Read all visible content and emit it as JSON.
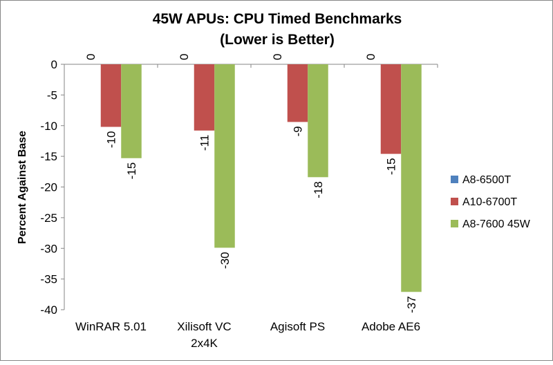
{
  "chart_data": {
    "type": "bar",
    "title": "45W APUs: CPU Timed Benchmarks",
    "subtitle": "(Lower is Better)",
    "xlabel": "",
    "ylabel": "Percent Against Base",
    "ylim": [
      -40,
      0
    ],
    "yticks": [
      "0",
      "-5",
      "-10",
      "-15",
      "-20",
      "-25",
      "-30",
      "-35",
      "-40"
    ],
    "ytick_values": [
      0,
      -5,
      -10,
      -15,
      -20,
      -25,
      -30,
      -35,
      -40
    ],
    "categories": [
      [
        "WinRAR 5.01"
      ],
      [
        "Xilisoft VC",
        "2x4K"
      ],
      [
        "Agisoft PS"
      ],
      [
        "Adobe AE6"
      ]
    ],
    "legend_position": "right",
    "grid": false,
    "series": [
      {
        "name": "A8-6500T",
        "color": "#4F81BD",
        "values": [
          0,
          0,
          0,
          0
        ],
        "labels": [
          "0",
          "0",
          "0",
          "0"
        ]
      },
      {
        "name": "A10-6700T",
        "color": "#C0504D",
        "values": [
          -10.2,
          -10.8,
          -9.4,
          -14.6
        ],
        "labels": [
          "-10",
          "-11",
          "-9",
          "-15"
        ]
      },
      {
        "name": "A8-7600 45W",
        "color": "#9BBB59",
        "values": [
          -15.3,
          -29.9,
          -18.4,
          -37.1
        ],
        "labels": [
          "-15",
          "-30",
          "-18",
          "-37"
        ]
      }
    ]
  }
}
